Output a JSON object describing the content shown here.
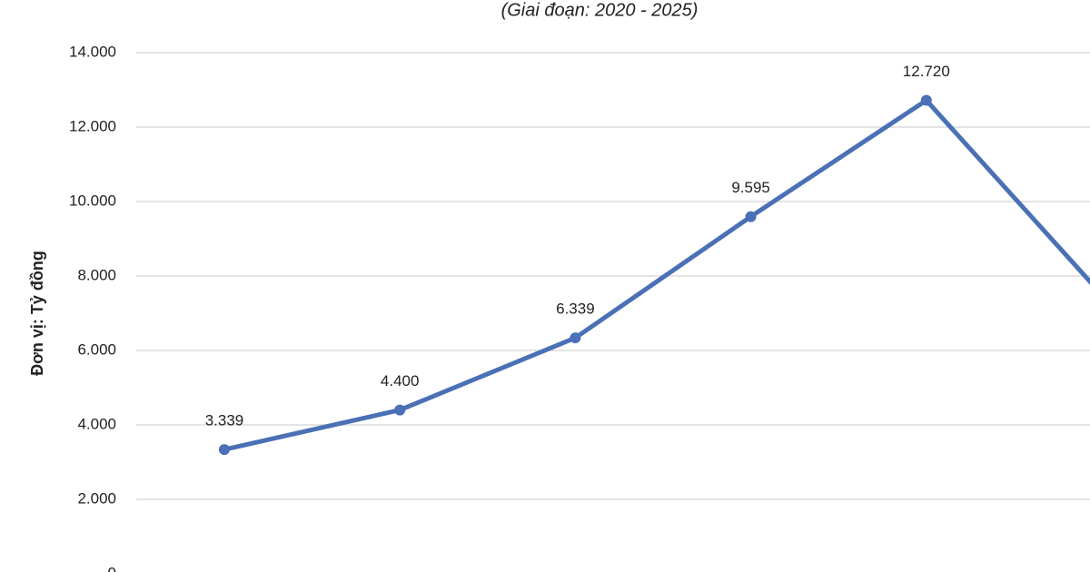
{
  "chart_data": {
    "type": "line",
    "subtitle": "(Giai đoạn: 2020 - 2025)",
    "y_label": "Đơn vị: Tỷ đồng",
    "categories": [
      null,
      null,
      null,
      null,
      null,
      null
    ],
    "series": [
      {
        "color": "#4a70b5",
        "values": [
          3339,
          4400,
          6339,
          9595,
          12720,
          7500
        ],
        "value_labels": [
          "3.339",
          "4.400",
          "6.339",
          "9.595",
          "12.720",
          null
        ]
      }
    ],
    "ylim": [
      0,
      14000
    ],
    "yticks": [
      0,
      {
        "value": 2000,
        "label": "2.000"
      },
      {
        "value": 4000,
        "label": "4.000"
      },
      {
        "value": 6000,
        "label": "6.000"
      },
      {
        "value": 8000,
        "label": "8.000"
      },
      {
        "value": 10000,
        "label": "10.000"
      },
      {
        "value": 12000,
        "label": "12.000"
      },
      {
        "value": 14000,
        "label": "14.000"
      }
    ],
    "grid": true
  }
}
